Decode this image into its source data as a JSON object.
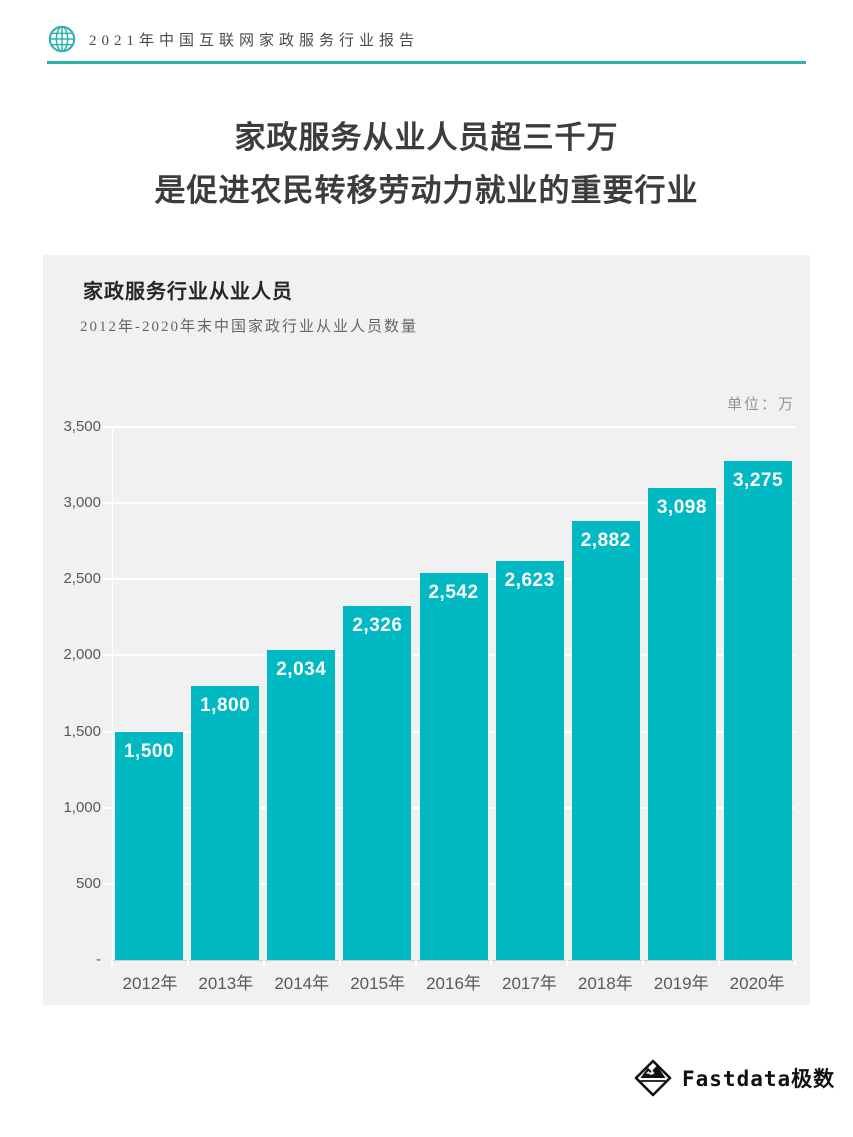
{
  "header": {
    "report_title": "2021年中国互联网家政服务行业报告",
    "accent_color": "#2eb3ab"
  },
  "main_title": {
    "line1": "家政服务从业人员超三千万",
    "line2": "是促进农民转移劳动力就业的重要行业"
  },
  "chart_card": {
    "title": "家政服务行业从业人员",
    "subtitle": "2012年-2020年末中国家政行业从业人员数量",
    "unit_label": "单位：万",
    "background": "#f1f1f1"
  },
  "chart_data": {
    "type": "bar",
    "title": "家政服务行业从业人员",
    "subtitle": "2012年-2020年末中国家政行业从业人员数量",
    "unit": "万",
    "categories": [
      "2012年",
      "2013年",
      "2014年",
      "2015年",
      "2016年",
      "2017年",
      "2018年",
      "2019年",
      "2020年"
    ],
    "values": [
      1500,
      1800,
      2034,
      2326,
      2542,
      2623,
      2882,
      3098,
      3275
    ],
    "value_labels": [
      "1,500",
      "1,800",
      "2,034",
      "2,326",
      "2,542",
      "2,623",
      "2,882",
      "3,098",
      "3,275"
    ],
    "y_ticks": [
      "3,500",
      "3,000",
      "2,500",
      "2,000",
      "1,500",
      "1,000",
      "500",
      "-"
    ],
    "ylim": [
      0,
      3500
    ],
    "bar_color": "#00b9c3",
    "grid": true,
    "grid_color": "#ffffff",
    "legend": false
  },
  "footer": {
    "brand": "Fastdata极数"
  }
}
